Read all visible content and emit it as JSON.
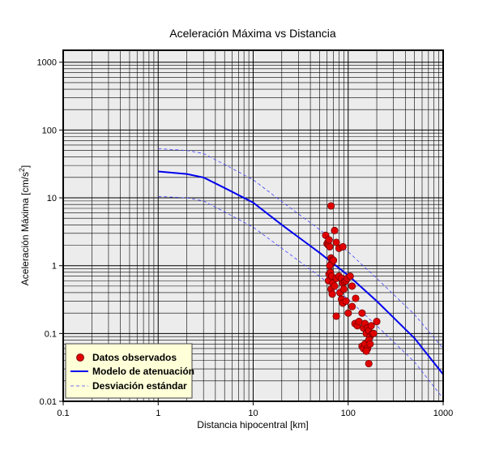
{
  "chart_data": {
    "type": "scatter",
    "title": "Aceleración Máxima vs Distancia",
    "xlabel": "Distancia hipocentral [km]",
    "ylabel_main": "Aceleración Máxima [cm/s",
    "ylabel_sup": "2",
    "ylabel_end": "]",
    "xscale": "log",
    "yscale": "log",
    "xlim": [
      0.1,
      1000
    ],
    "ylim": [
      0.01,
      1500
    ],
    "grid": true,
    "legend_position": "bottom-left",
    "x_ticks": [
      {
        "value": 0.1,
        "label": "0.1"
      },
      {
        "value": 1,
        "label": "1"
      },
      {
        "value": 10,
        "label": "10"
      },
      {
        "value": 100,
        "label": "100"
      },
      {
        "value": 1000,
        "label": "1000"
      }
    ],
    "y_ticks": [
      {
        "value": 0.01,
        "label": "0.01"
      },
      {
        "value": 0.1,
        "label": "0.1"
      },
      {
        "value": 1,
        "label": "1"
      },
      {
        "value": 10,
        "label": "10"
      },
      {
        "value": 100,
        "label": "100"
      },
      {
        "value": 1000,
        "label": "1000"
      }
    ],
    "series": [
      {
        "name": "Datos observados",
        "kind": "scatter",
        "color": "#e00000",
        "points": [
          [
            58,
            2.8
          ],
          [
            60,
            2.1
          ],
          [
            61,
            2.2
          ],
          [
            62,
            2.0
          ],
          [
            63,
            2.4
          ],
          [
            64,
            1.9
          ],
          [
            66,
            7.6
          ],
          [
            72,
            3.3
          ],
          [
            75,
            2.2
          ],
          [
            80,
            1.8
          ],
          [
            88,
            1.9
          ],
          [
            66,
            1.3
          ],
          [
            67,
            1.1
          ],
          [
            68,
            1.2
          ],
          [
            70,
            1.2
          ],
          [
            64,
            1.0
          ],
          [
            62,
            0.6
          ],
          [
            63,
            0.75
          ],
          [
            65,
            0.8
          ],
          [
            67,
            0.7
          ],
          [
            69,
            0.55
          ],
          [
            66,
            0.45
          ],
          [
            68,
            0.38
          ],
          [
            72,
            0.5
          ],
          [
            75,
            0.65
          ],
          [
            80,
            0.7
          ],
          [
            85,
            0.65
          ],
          [
            88,
            0.55
          ],
          [
            92,
            0.58
          ],
          [
            95,
            0.6
          ],
          [
            98,
            0.65
          ],
          [
            105,
            0.7
          ],
          [
            110,
            0.5
          ],
          [
            82,
            0.4
          ],
          [
            85,
            0.32
          ],
          [
            88,
            0.28
          ],
          [
            90,
            0.45
          ],
          [
            95,
            0.3
          ],
          [
            75,
            0.18
          ],
          [
            100,
            0.2
          ],
          [
            110,
            0.25
          ],
          [
            120,
            0.33
          ],
          [
            118,
            0.14
          ],
          [
            125,
            0.13
          ],
          [
            130,
            0.15
          ],
          [
            140,
            0.2
          ],
          [
            145,
            0.12
          ],
          [
            150,
            0.14
          ],
          [
            155,
            0.1
          ],
          [
            160,
            0.12
          ],
          [
            165,
            0.11
          ],
          [
            170,
            0.09
          ],
          [
            175,
            0.13
          ],
          [
            180,
            0.1
          ],
          [
            185,
            0.1
          ],
          [
            140,
            0.065
          ],
          [
            145,
            0.06
          ],
          [
            150,
            0.07
          ],
          [
            160,
            0.06
          ],
          [
            165,
            0.08
          ],
          [
            170,
            0.07
          ],
          [
            155,
            0.055
          ],
          [
            165,
            0.036
          ],
          [
            200,
            0.15
          ]
        ]
      },
      {
        "name": "Modelo de atenuación",
        "kind": "line",
        "color": "#0000ee",
        "points": [
          [
            1,
            24.5
          ],
          [
            2,
            22.5
          ],
          [
            3,
            20
          ],
          [
            5,
            14
          ],
          [
            10,
            8.5
          ],
          [
            20,
            4
          ],
          [
            50,
            1.55
          ],
          [
            100,
            0.72
          ],
          [
            200,
            0.3
          ],
          [
            500,
            0.085
          ],
          [
            1000,
            0.025
          ]
        ]
      },
      {
        "name": "Desviación estándar",
        "kind": "dashed",
        "color": "#4444ff",
        "upper": [
          [
            1,
            53
          ],
          [
            2,
            50
          ],
          [
            3,
            45
          ],
          [
            5,
            31
          ],
          [
            10,
            18.5
          ],
          [
            20,
            8.8
          ],
          [
            50,
            3.4
          ],
          [
            100,
            1.6
          ],
          [
            200,
            0.65
          ],
          [
            500,
            0.19
          ],
          [
            1000,
            0.06
          ]
        ],
        "lower": [
          [
            1,
            10.5
          ],
          [
            2,
            10
          ],
          [
            3,
            9
          ],
          [
            5,
            6.2
          ],
          [
            10,
            3.7
          ],
          [
            20,
            1.8
          ],
          [
            50,
            0.7
          ],
          [
            100,
            0.32
          ],
          [
            200,
            0.13
          ],
          [
            500,
            0.038
          ],
          [
            1000,
            0.011
          ]
        ]
      }
    ]
  }
}
